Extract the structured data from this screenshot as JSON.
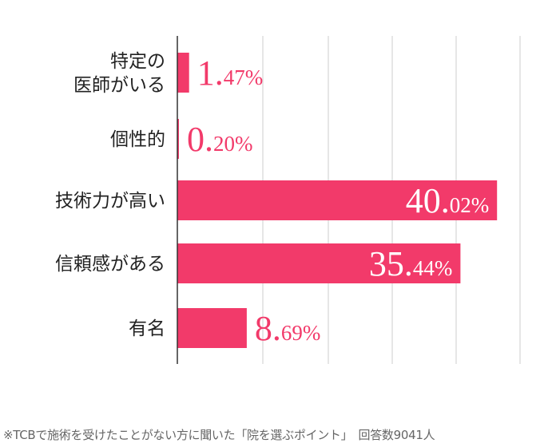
{
  "chart_data": {
    "type": "bar",
    "orientation": "horizontal",
    "categories": [
      "特定の\n医師がいる",
      "個性的",
      "技術力が高い",
      "信頼感がある",
      "有名"
    ],
    "values": [
      1.47,
      0.2,
      40.02,
      35.44,
      8.69
    ],
    "value_labels": [
      {
        "int": "1.",
        "dec": "47%"
      },
      {
        "int": "0.",
        "dec": "20%"
      },
      {
        "int": "40.",
        "dec": "02%"
      },
      {
        "int": "35.",
        "dec": "44%"
      },
      {
        "int": "8.",
        "dec": "69%"
      }
    ],
    "xlim": [
      0,
      43
    ],
    "grid": true,
    "bar_color": "#f23a6a"
  },
  "footnote": "※TCBで施術を受けたことがない方に聞いた「院を選ぶポイント」　回答数9041人"
}
